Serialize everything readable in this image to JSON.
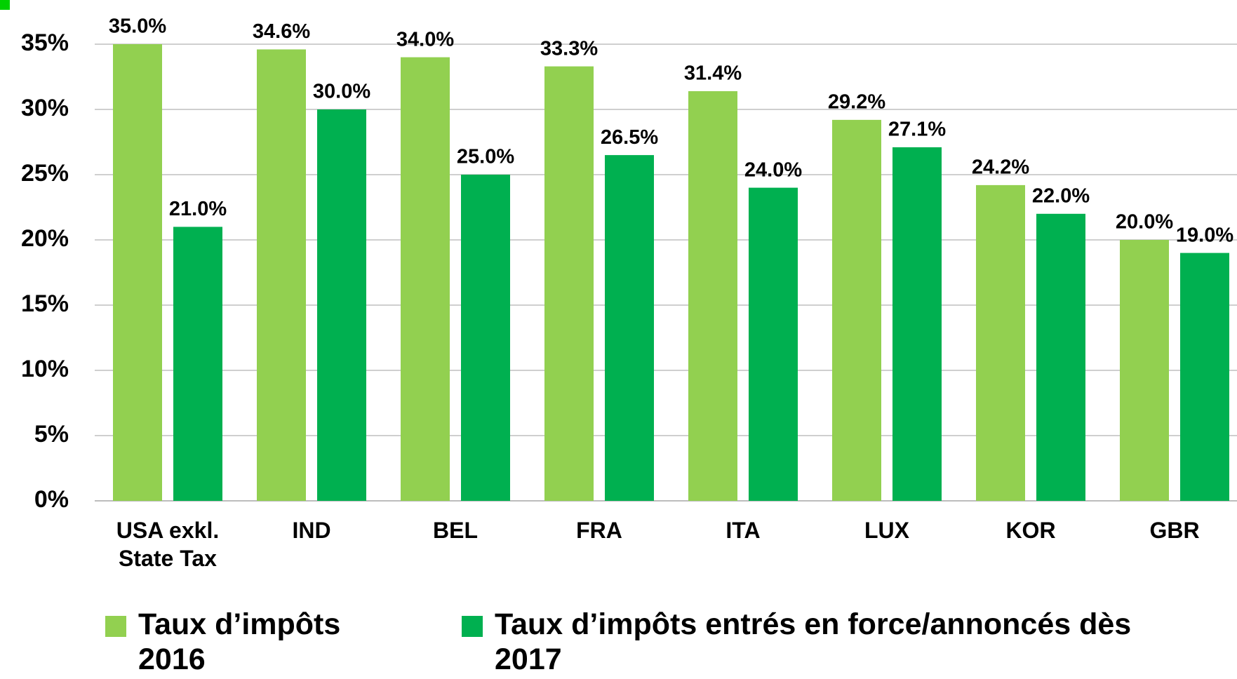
{
  "chart_data": {
    "type": "bar",
    "categories": [
      "USA exkl. State Tax",
      "IND",
      "BEL",
      "FRA",
      "ITA",
      "LUX",
      "KOR",
      "GBR"
    ],
    "series": [
      {
        "name": "Taux d’impôts 2016",
        "color": "#92d050",
        "values": [
          35.0,
          34.6,
          34.0,
          33.3,
          31.4,
          29.2,
          24.2,
          20.0
        ],
        "value_labels": [
          "35.0%",
          "34.6%",
          "34.0%",
          "33.3%",
          "31.4%",
          "29.2%",
          "24.2%",
          "20.0%"
        ]
      },
      {
        "name": "Taux d’impôts entrés en force/annoncés dès 2017",
        "color": "#00b050",
        "values": [
          21.0,
          30.0,
          25.0,
          26.5,
          24.0,
          27.1,
          22.0,
          19.0
        ],
        "value_labels": [
          "21.0%",
          "30.0%",
          "25.0%",
          "26.5%",
          "24.0%",
          "27.1%",
          "22.0%",
          "19.0%"
        ]
      }
    ],
    "ylim": [
      0,
      35
    ],
    "yticks": [
      {
        "value": 0,
        "label": "0%"
      },
      {
        "value": 5,
        "label": "5%"
      },
      {
        "value": 10,
        "label": "10%"
      },
      {
        "value": 15,
        "label": "15%"
      },
      {
        "value": 20,
        "label": "20%"
      },
      {
        "value": 25,
        "label": "25%"
      },
      {
        "value": 30,
        "label": "30%"
      },
      {
        "value": 35,
        "label": "35%"
      }
    ],
    "grid": true,
    "legend": "bottom"
  }
}
